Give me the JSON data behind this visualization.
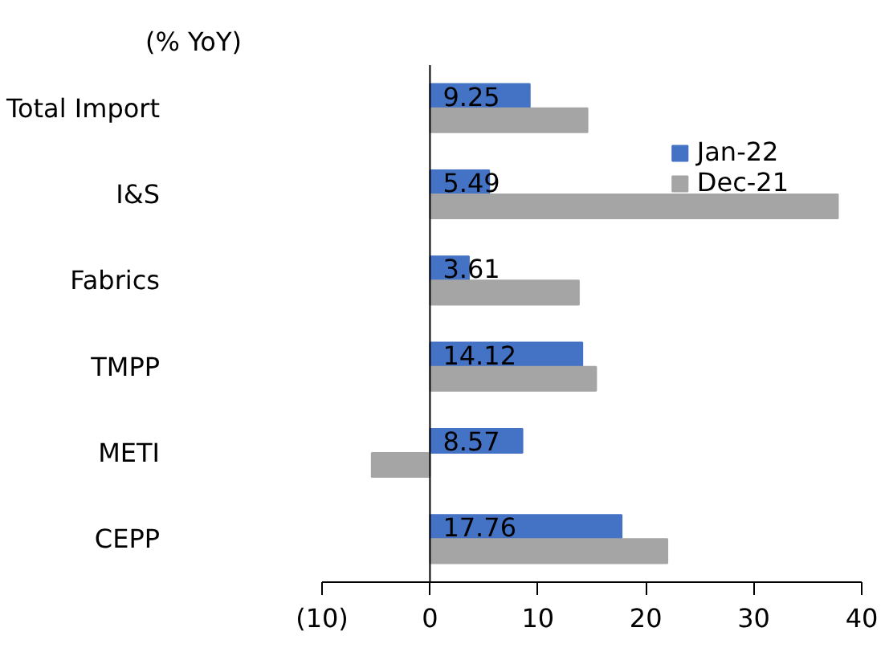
{
  "chart_data": {
    "type": "bar",
    "orientation": "horizontal",
    "title": "(% YoY)",
    "categories": [
      "Total Import",
      "I&S",
      "Fabrics",
      "TMPP",
      "METI",
      "CEPP"
    ],
    "series": [
      {
        "name": "Jan-22",
        "color": "#4472c4",
        "values": [
          9.25,
          5.49,
          3.61,
          14.12,
          8.57,
          17.76
        ],
        "value_labels": [
          "9.25",
          "5.49",
          "3.61",
          "14.12",
          "8.57",
          "17.76"
        ]
      },
      {
        "name": "Dec-21",
        "color": "#a5a5a5",
        "values": [
          14.6,
          37.8,
          13.8,
          15.4,
          -5.4,
          22.0
        ]
      }
    ],
    "xlim": [
      -10,
      40
    ],
    "xticks": [
      {
        "value": -10,
        "label": "(10)"
      },
      0,
      10,
      20,
      30,
      40
    ],
    "legend": "top right"
  }
}
